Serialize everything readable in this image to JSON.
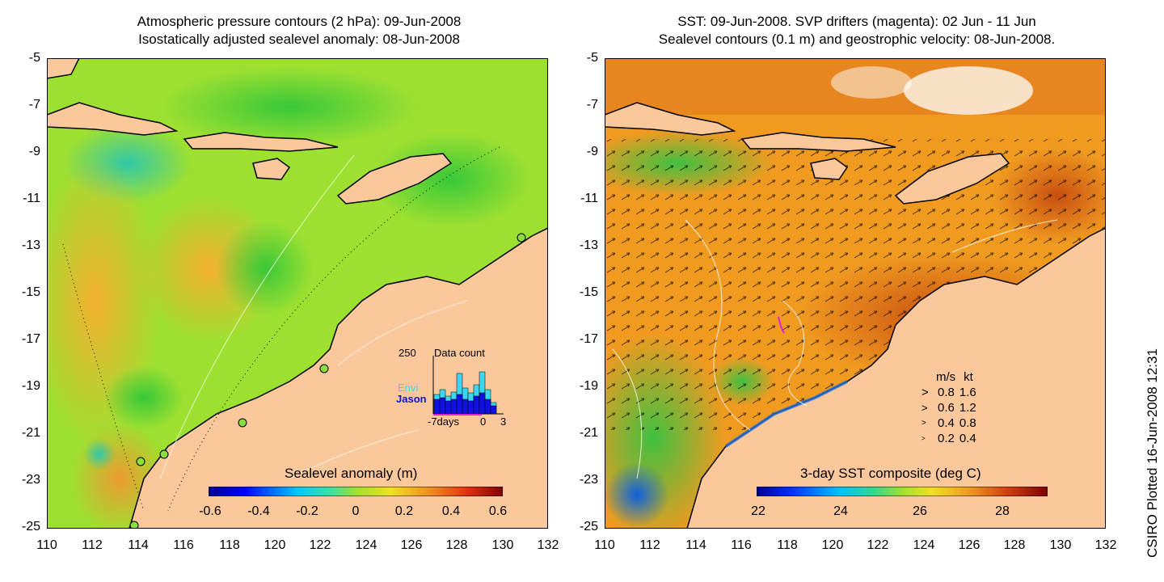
{
  "left_panel": {
    "title_line1": "Atmospheric pressure contours (2 hPa): 09-Jun-2008",
    "title_line2": "Isostatically adjusted sealevel anomaly: 08-Jun-2008",
    "yticks": [
      "-5",
      "-7",
      "-9",
      "-11",
      "-13",
      "-15",
      "-17",
      "-19",
      "-21",
      "-23",
      "-25"
    ],
    "xticks": [
      "110",
      "112",
      "114",
      "116",
      "118",
      "120",
      "122",
      "124",
      "126",
      "128",
      "130",
      "132"
    ],
    "colorbar_title": "Sealevel anomaly (m)",
    "colorbar_ticks": [
      "-0.6",
      "-0.4",
      "-0.2",
      "0",
      "0.2",
      "0.4",
      "0.6"
    ],
    "inset": {
      "max_label": "250",
      "title": "Data count",
      "series1": "Envi",
      "series2": "Jason",
      "xlabel_left": "-7days",
      "xlabel_mid": "0",
      "xlabel_right": "3",
      "series1_color": "#38d8f0",
      "series2_color": "#1010e0"
    }
  },
  "right_panel": {
    "title_line1": "SST: 09-Jun-2008. SVP drifters (magenta): 02 Jun - 11 Jun",
    "title_line2": "Sealevel contours (0.1 m) and geostrophic velocity: 08-Jun-2008.",
    "yticks": [
      "-5",
      "-7",
      "-9",
      "-11",
      "-13",
      "-15",
      "-17",
      "-19",
      "-21",
      "-23",
      "-25"
    ],
    "xticks": [
      "110",
      "112",
      "114",
      "116",
      "118",
      "120",
      "122",
      "124",
      "126",
      "128",
      "130",
      "132"
    ],
    "colorbar_title": "3-day SST composite (deg C)",
    "colorbar_ticks": [
      "22",
      "24",
      "26",
      "28"
    ],
    "velocity_legend": {
      "header_ms": "m/s",
      "header_kt": "kt",
      "rows": [
        {
          "ms": "0.8",
          "kt": "1.6"
        },
        {
          "ms": "0.6",
          "kt": "1.2"
        },
        {
          "ms": "0.4",
          "kt": "0.8"
        },
        {
          "ms": "0.2",
          "kt": "0.4"
        }
      ]
    }
  },
  "credit": "CSIRO Plotted 16-Jun-2008 12:31",
  "colors": {
    "land": "#fbc89c",
    "coast": "#000000",
    "contour": "#ffffff",
    "drifter": "#e020e0"
  }
}
